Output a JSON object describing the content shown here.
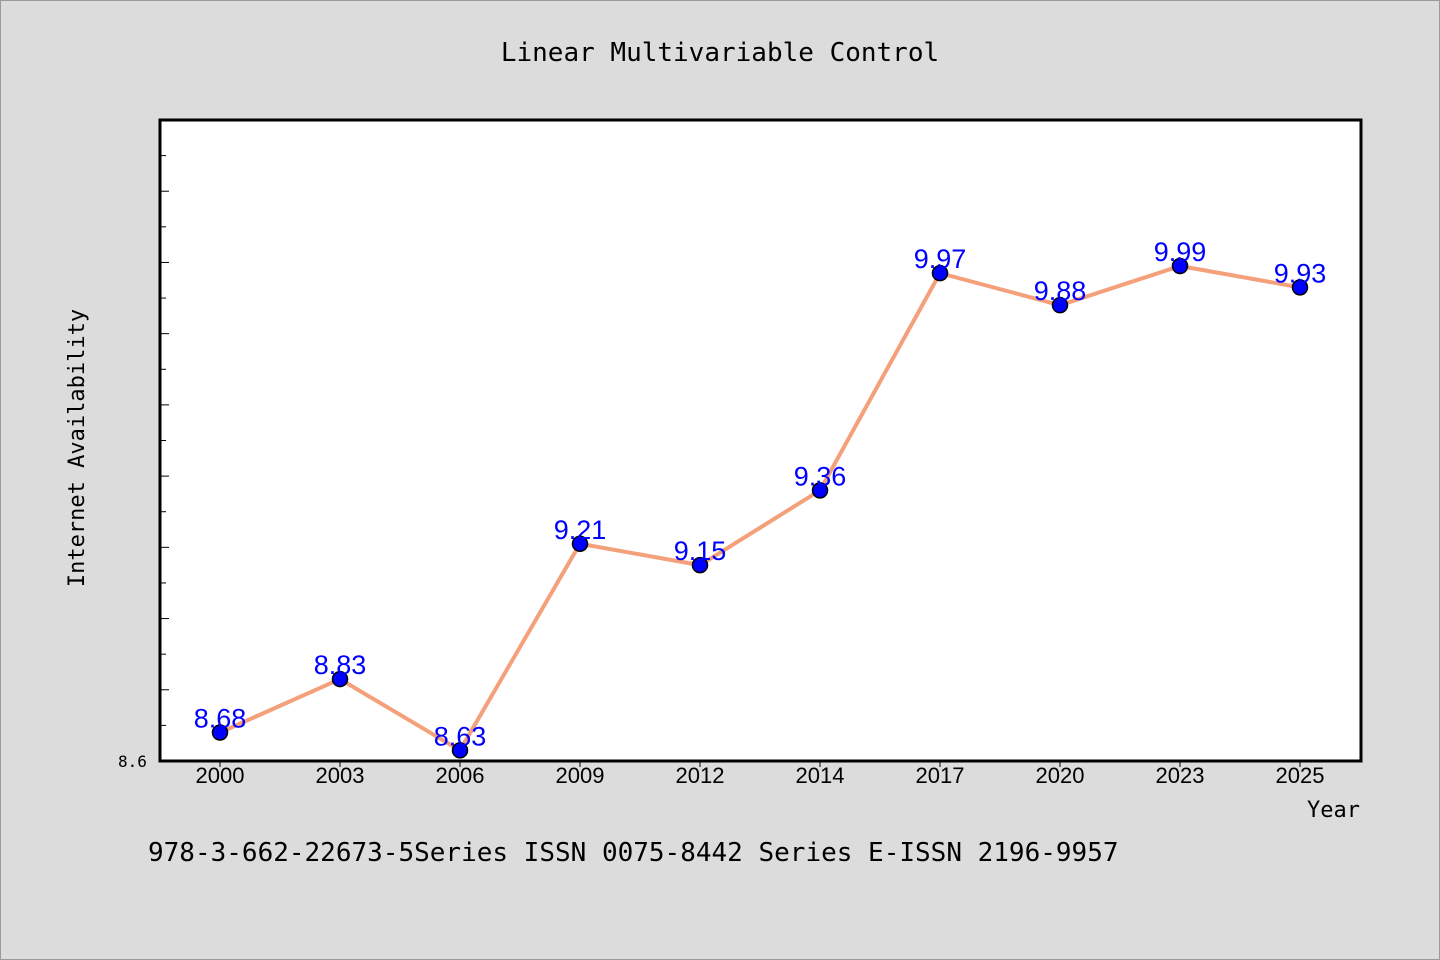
{
  "chart_data": {
    "type": "line",
    "title": "Linear Multivariable Control",
    "xlabel": "Year",
    "ylabel": "Internet Availability",
    "categories": [
      "2000",
      "2003",
      "2006",
      "2009",
      "2012",
      "2014",
      "2017",
      "2020",
      "2023",
      "2025"
    ],
    "series": [
      {
        "values": [
          8.68,
          8.83,
          8.63,
          9.21,
          9.15,
          9.36,
          9.97,
          9.88,
          9.99,
          9.93
        ],
        "line_color": "#f4a07a",
        "marker_color": "#0000ff"
      }
    ],
    "data_labels": [
      "8.68",
      "8.83",
      "8.63",
      "9.21",
      "9.15",
      "9.36",
      "9.97",
      "9.88",
      "9.99",
      "9.93"
    ],
    "ylim": [
      8.6,
      10.4
    ],
    "y_min_label": "8.6",
    "grid": false,
    "legend": "none",
    "label_color": "#0000ff",
    "plot_background": "#ffffff",
    "page_background": "#dcdcdc"
  },
  "footer": {
    "text": "978-3-662-22673-5Series ISSN 0075-8442 Series E-ISSN 2196-9957"
  }
}
